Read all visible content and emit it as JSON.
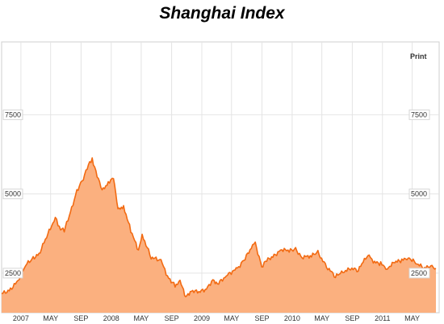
{
  "title": "Shanghai Index",
  "print_label": "Print",
  "colors": {
    "line": "#f26a12",
    "fill": "#fbb07f",
    "grid": "#e4e4e4",
    "border": "#cfcfcf"
  },
  "chart_data": {
    "type": "area",
    "title": "Shanghai Index",
    "xlabel": "",
    "ylabel": "",
    "x_range": [
      "2006-10-15",
      "2011-08-05"
    ],
    "ylim": [
      1250,
      9800
    ],
    "y_ticks": [
      2500,
      5000,
      7500
    ],
    "y_tick_labels": [
      "2500",
      "5000",
      "7500"
    ],
    "x_ticks": [
      {
        "label": "2007",
        "date": "2007-01-01"
      },
      {
        "label": "MAY",
        "date": "2007-05-01"
      },
      {
        "label": "SEP",
        "date": "2007-09-01"
      },
      {
        "label": "2008",
        "date": "2008-01-01"
      },
      {
        "label": "MAY",
        "date": "2008-05-01"
      },
      {
        "label": "SEP",
        "date": "2008-09-01"
      },
      {
        "label": "2009",
        "date": "2009-01-01"
      },
      {
        "label": "MAY",
        "date": "2009-05-01"
      },
      {
        "label": "SEP",
        "date": "2009-09-01"
      },
      {
        "label": "2010",
        "date": "2010-01-01"
      },
      {
        "label": "MAY",
        "date": "2010-05-01"
      },
      {
        "label": "SEP",
        "date": "2010-09-01"
      },
      {
        "label": "2011",
        "date": "2011-01-01"
      },
      {
        "label": "MAY",
        "date": "2011-05-01"
      }
    ],
    "grid": true,
    "series": [
      {
        "values": [
          [
            "2006-10-15",
            1850
          ],
          [
            "2006-11-15",
            1950
          ],
          [
            "2006-12-20",
            2250
          ],
          [
            "2007-01-20",
            2750
          ],
          [
            "2007-02-15",
            2950
          ],
          [
            "2007-03-15",
            3100
          ],
          [
            "2007-04-15",
            3650
          ],
          [
            "2007-05-20",
            4250
          ],
          [
            "2007-06-05",
            3950
          ],
          [
            "2007-06-25",
            3850
          ],
          [
            "2007-07-20",
            4400
          ],
          [
            "2007-08-15",
            5100
          ],
          [
            "2007-09-10",
            5500
          ],
          [
            "2007-10-01",
            5900
          ],
          [
            "2007-10-16",
            6100
          ],
          [
            "2007-11-05",
            5600
          ],
          [
            "2007-11-25",
            5100
          ],
          [
            "2007-12-20",
            5350
          ],
          [
            "2008-01-10",
            5550
          ],
          [
            "2008-01-28",
            4500
          ],
          [
            "2008-02-20",
            4600
          ],
          [
            "2008-03-20",
            3850
          ],
          [
            "2008-04-20",
            3200
          ],
          [
            "2008-05-05",
            3700
          ],
          [
            "2008-06-10",
            3000
          ],
          [
            "2008-07-20",
            2900
          ],
          [
            "2008-08-15",
            2400
          ],
          [
            "2008-09-15",
            2100
          ],
          [
            "2008-10-05",
            2250
          ],
          [
            "2008-10-28",
            1750
          ],
          [
            "2008-11-20",
            1950
          ],
          [
            "2008-12-20",
            1900
          ],
          [
            "2009-01-20",
            2000
          ],
          [
            "2009-02-15",
            2300
          ],
          [
            "2009-03-05",
            2150
          ],
          [
            "2009-04-15",
            2450
          ],
          [
            "2009-05-25",
            2650
          ],
          [
            "2009-06-20",
            2900
          ],
          [
            "2009-07-20",
            3300
          ],
          [
            "2009-08-05",
            3450
          ],
          [
            "2009-08-31",
            2700
          ],
          [
            "2009-09-20",
            2900
          ],
          [
            "2009-10-20",
            3050
          ],
          [
            "2009-11-20",
            3250
          ],
          [
            "2009-12-20",
            3200
          ],
          [
            "2010-01-15",
            3250
          ],
          [
            "2010-02-10",
            3000
          ],
          [
            "2010-03-20",
            3050
          ],
          [
            "2010-04-15",
            3150
          ],
          [
            "2010-05-20",
            2700
          ],
          [
            "2010-06-25",
            2400
          ],
          [
            "2010-07-20",
            2500
          ],
          [
            "2010-08-20",
            2650
          ],
          [
            "2010-09-25",
            2600
          ],
          [
            "2010-10-20",
            2900
          ],
          [
            "2010-11-08",
            3100
          ],
          [
            "2010-11-25",
            2850
          ],
          [
            "2010-12-25",
            2800
          ],
          [
            "2011-01-20",
            2650
          ],
          [
            "2011-02-20",
            2850
          ],
          [
            "2011-03-20",
            2900
          ],
          [
            "2011-04-15",
            3000
          ],
          [
            "2011-05-20",
            2800
          ],
          [
            "2011-06-20",
            2650
          ],
          [
            "2011-07-15",
            2750
          ],
          [
            "2011-08-05",
            2650
          ]
        ]
      }
    ]
  }
}
